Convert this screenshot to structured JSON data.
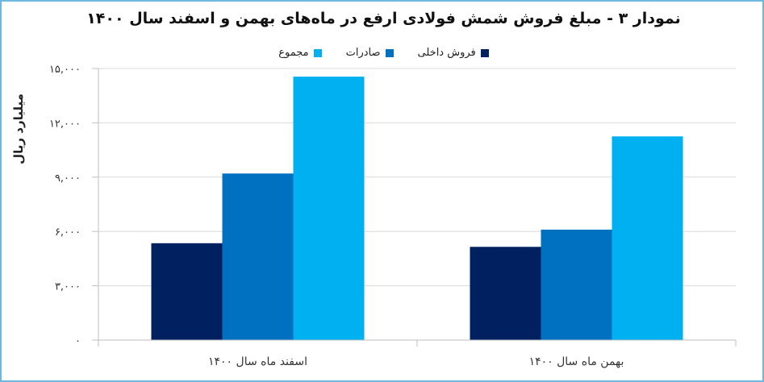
{
  "chart_data": {
    "type": "bar",
    "title": "نمودار ۳ - مبلغ فروش شمش فولادی ارفع در ماه‌های بهمن و اسفند سال ۱۴۰۰",
    "ylabel": "میلیارد ریال",
    "xlabel": "",
    "ylim": [
      0,
      15000
    ],
    "yticks": [
      0,
      3000,
      6000,
      9000,
      12000,
      15000
    ],
    "ytick_labels": [
      "۰",
      "۳,۰۰۰",
      "۶,۰۰۰",
      "۹,۰۰۰",
      "۱۲,۰۰۰",
      "۱۵,۰۰۰"
    ],
    "categories": [
      "اسفند ماه سال ۱۴۰۰",
      "بهمن ماه سال ۱۴۰۰"
    ],
    "series": [
      {
        "name": "فروش داخلی",
        "color": "#002060",
        "values": [
          5350,
          5150
        ]
      },
      {
        "name": "صادرات",
        "color": "#0070c0",
        "values": [
          9200,
          6100
        ]
      },
      {
        "name": "مجموع",
        "color": "#00b0f0",
        "values": [
          14550,
          11250
        ]
      }
    ],
    "grid": true,
    "legend_position": "top"
  }
}
